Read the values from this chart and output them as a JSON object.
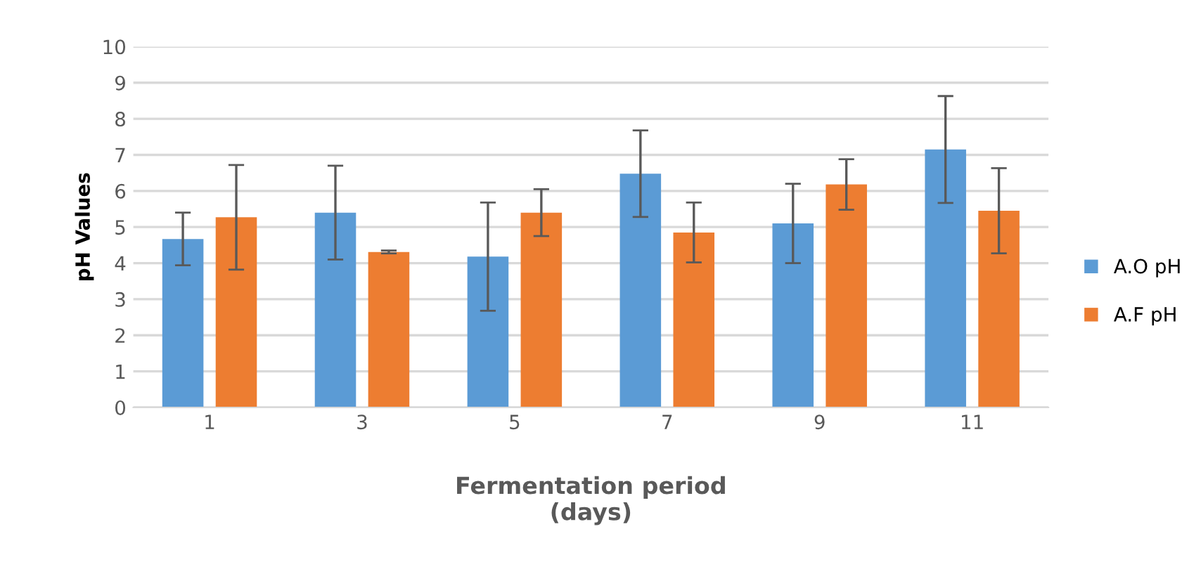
{
  "chart_data": {
    "type": "bar",
    "xlabel": "Fermentation period\n(days)",
    "ylabel": "pH Values",
    "categories": [
      "1",
      "3",
      "5",
      "7",
      "9",
      "11"
    ],
    "series": [
      {
        "name": "A.O pH",
        "color": "#5b9bd5",
        "values": [
          4.67,
          5.4,
          4.18,
          6.48,
          5.1,
          7.15
        ],
        "errors": [
          0.73,
          1.3,
          1.5,
          1.2,
          1.1,
          1.48
        ]
      },
      {
        "name": "A.F pH",
        "color": "#ed7d31",
        "values": [
          5.27,
          4.31,
          5.4,
          4.85,
          6.18,
          5.45
        ],
        "errors": [
          1.45,
          0.04,
          0.65,
          0.83,
          0.7,
          1.18
        ]
      }
    ],
    "ylim": [
      0,
      10
    ],
    "yticks": [
      0,
      1,
      2,
      3,
      4,
      5,
      6,
      7,
      8,
      9,
      10
    ],
    "grid": "y",
    "legend": "right"
  }
}
